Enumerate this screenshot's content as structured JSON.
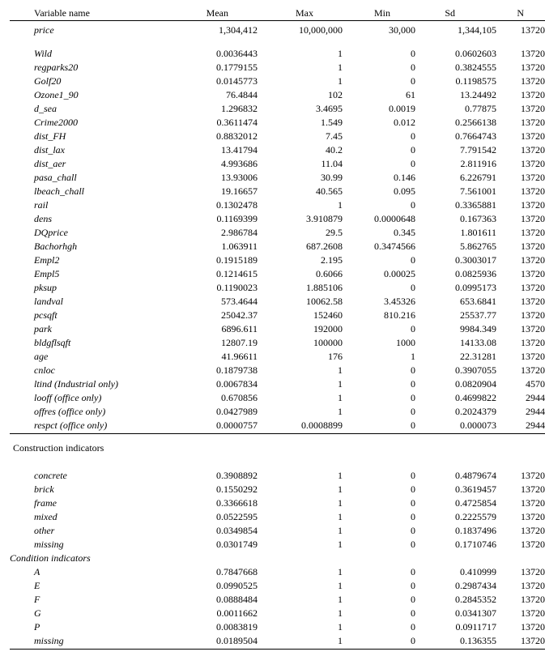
{
  "headers": {
    "var": "Variable name",
    "mean": "Mean",
    "max": "Max",
    "min": "Min",
    "sd": "Sd",
    "n": "N"
  },
  "section1": [
    {
      "var": "price",
      "mean": "1,304,412",
      "max": "10,000,000",
      "min": "30,000",
      "sd": "1,344,105",
      "n": "13720"
    }
  ],
  "section1b": [
    {
      "var": "Wild",
      "mean": "0.0036443",
      "max": "1",
      "min": "0",
      "sd": "0.0602603",
      "n": "13720"
    },
    {
      "var": "regparks20",
      "mean": "0.1779155",
      "max": "1",
      "min": "0",
      "sd": "0.3824555",
      "n": "13720"
    },
    {
      "var": "Golf20",
      "mean": "0.0145773",
      "max": "1",
      "min": "0",
      "sd": "0.1198575",
      "n": "13720"
    },
    {
      "var": "Ozone1_90",
      "mean": "76.4844",
      "max": "102",
      "min": "61",
      "sd": "13.24492",
      "n": "13720"
    },
    {
      "var": "d_sea",
      "mean": "1.296832",
      "max": "3.4695",
      "min": "0.0019",
      "sd": "0.77875",
      "n": "13720"
    },
    {
      "var": "Crime2000",
      "mean": "0.3611474",
      "max": "1.549",
      "min": "0.012",
      "sd": "0.2566138",
      "n": "13720"
    },
    {
      "var": "dist_FH",
      "mean": "0.8832012",
      "max": "7.45",
      "min": "0",
      "sd": "0.7664743",
      "n": "13720"
    },
    {
      "var": "dist_lax",
      "mean": "13.41794",
      "max": "40.2",
      "min": "0",
      "sd": "7.791542",
      "n": "13720"
    },
    {
      "var": "dist_aer",
      "mean": "4.993686",
      "max": "11.04",
      "min": "0",
      "sd": "2.811916",
      "n": "13720"
    },
    {
      "var": "pasa_chall",
      "mean": "13.93006",
      "max": "30.99",
      "min": "0.146",
      "sd": "6.226791",
      "n": "13720"
    },
    {
      "var": "lbeach_chall",
      "mean": "19.16657",
      "max": "40.565",
      "min": "0.095",
      "sd": "7.561001",
      "n": "13720"
    },
    {
      "var": "rail",
      "mean": "0.1302478",
      "max": "1",
      "min": "0",
      "sd": "0.3365881",
      "n": "13720"
    },
    {
      "var": "dens",
      "mean": "0.1169399",
      "max": "3.910879",
      "min": "0.0000648",
      "sd": "0.167363",
      "n": "13720"
    },
    {
      "var": "DQprice",
      "mean": "2.986784",
      "max": "29.5",
      "min": "0.345",
      "sd": "1.801611",
      "n": "13720"
    },
    {
      "var": "Bachorhgh",
      "mean": "1.063911",
      "max": "687.2608",
      "min": "0.3474566",
      "sd": "5.862765",
      "n": "13720"
    },
    {
      "var": "Empl2",
      "mean": "0.1915189",
      "max": "2.195",
      "min": "0",
      "sd": "0.3003017",
      "n": "13720"
    },
    {
      "var": "Empl5",
      "mean": "0.1214615",
      "max": "0.6066",
      "min": "0.00025",
      "sd": "0.0825936",
      "n": "13720"
    },
    {
      "var": "pksup",
      "mean": "0.1190023",
      "max": "1.885106",
      "min": "0",
      "sd": "0.0995173",
      "n": "13720"
    },
    {
      "var": "landval",
      "mean": "573.4644",
      "max": "10062.58",
      "min": "3.45326",
      "sd": "653.6841",
      "n": "13720"
    },
    {
      "var": "pcsqft",
      "mean": "25042.37",
      "max": "152460",
      "min": "810.216",
      "sd": "25537.77",
      "n": "13720"
    },
    {
      "var": "park",
      "mean": "6896.611",
      "max": "192000",
      "min": "0",
      "sd": "9984.349",
      "n": "13720"
    },
    {
      "var": "bldgflsqft",
      "mean": "12807.19",
      "max": "100000",
      "min": "1000",
      "sd": "14133.08",
      "n": "13720"
    },
    {
      "var": "age",
      "mean": "41.96611",
      "max": "176",
      "min": "1",
      "sd": "22.31281",
      "n": "13720"
    },
    {
      "var": "cnloc",
      "mean": "0.1879738",
      "max": "1",
      "min": "0",
      "sd": "0.3907055",
      "n": "13720"
    },
    {
      "var": "ltind (Industrial only)",
      "mean": "0.0067834",
      "max": "1",
      "min": "0",
      "sd": "0.0820904",
      "n": "4570"
    },
    {
      "var": "looff (office only)",
      "mean": "0.670856",
      "max": "1",
      "min": "0",
      "sd": "0.4699822",
      "n": "2944"
    },
    {
      "var": "offres  (office only)",
      "mean": "0.0427989",
      "max": "1",
      "min": "0",
      "sd": "0.2024379",
      "n": "2944"
    },
    {
      "var": "respct  (office only)",
      "mean": "0.0000757",
      "max": "0.0008899",
      "min": "0",
      "sd": "0.000073",
      "n": "2944"
    }
  ],
  "section2_label": "Construction indicators",
  "section2": [
    {
      "var": "concrete",
      "mean": "0.3908892",
      "max": "1",
      "min": "0",
      "sd": "0.4879674",
      "n": "13720"
    },
    {
      "var": "brick",
      "mean": "0.1550292",
      "max": "1",
      "min": "0",
      "sd": "0.3619457",
      "n": "13720"
    },
    {
      "var": "frame",
      "mean": "0.3366618",
      "max": "1",
      "min": "0",
      "sd": "0.4725854",
      "n": "13720"
    },
    {
      "var": "mixed",
      "mean": "0.0522595",
      "max": "1",
      "min": "0",
      "sd": "0.2225579",
      "n": "13720"
    },
    {
      "var": "other",
      "mean": "0.0349854",
      "max": "1",
      "min": "0",
      "sd": "0.1837496",
      "n": "13720"
    },
    {
      "var": "missing",
      "mean": "0.0301749",
      "max": "1",
      "min": "0",
      "sd": "0.1710746",
      "n": "13720"
    }
  ],
  "section3_label": "Condition indicators",
  "section3": [
    {
      "var": "A",
      "mean": "0.7847668",
      "max": "1",
      "min": "0",
      "sd": "0.410999",
      "n": "13720"
    },
    {
      "var": "E",
      "mean": "0.0990525",
      "max": "1",
      "min": "0",
      "sd": "0.2987434",
      "n": "13720"
    },
    {
      "var": "F",
      "mean": "0.0888484",
      "max": "1",
      "min": "0",
      "sd": "0.2845352",
      "n": "13720"
    },
    {
      "var": "G",
      "mean": "0.0011662",
      "max": "1",
      "min": "0",
      "sd": "0.0341307",
      "n": "13720"
    },
    {
      "var": "P",
      "mean": "0.0083819",
      "max": "1",
      "min": "0",
      "sd": "0.0911717",
      "n": "13720"
    },
    {
      "var": "missing",
      "mean": "0.0189504",
      "max": "1",
      "min": "0",
      "sd": "0.136355",
      "n": "13720"
    }
  ]
}
